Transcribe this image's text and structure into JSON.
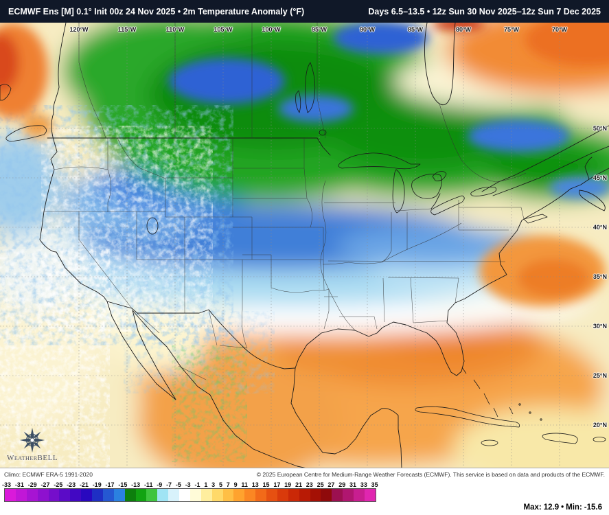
{
  "header": {
    "title_model": "ECMWF Ens [M] 0.1°",
    "title_rest": "Init 00z 24 Nov 2025 • 2m Temperature Anomaly (°F)",
    "valid_range": "Days 6.5–13.5 • 12z Sun 30 Nov 2025–12z Sun 7 Dec 2025"
  },
  "map": {
    "lon_labels": [
      "120°W",
      "115°W",
      "110°W",
      "105°W",
      "100°W",
      "95°W",
      "90°W",
      "85°W",
      "80°W",
      "75°W",
      "70°W"
    ],
    "lat_labels": [
      "50°N",
      "45°N",
      "40°N",
      "35°N",
      "30°N",
      "25°N",
      "20°N"
    ],
    "logo_text": "WeatherBELL"
  },
  "footer": {
    "climo": "Climo: ECMWF ERA-5 1991-2020",
    "copyright": "© 2025 European Centre for Medium-Range Weather Forecasts (ECMWF). This service is based on data and products of the ECMWF.",
    "max_label": "Max:",
    "max_value": "12.9",
    "separator": "•",
    "min_label": "Min:",
    "min_value": "-15.6"
  },
  "chart_data": {
    "type": "heatmap",
    "title": "ECMWF Ens [M] 0.1° 2m Temperature Anomaly (°F)",
    "init": "00z 24 Nov 2025",
    "valid": "Days 6.5–13.5 • 12z Sun 30 Nov 2025–12z Sun 7 Dec 2025",
    "units": "°F",
    "climatology": "ECMWF ERA-5 1991-2020",
    "max": 12.9,
    "min": -15.6,
    "colorbar": {
      "tick_labels": [
        -33,
        -31,
        -29,
        -27,
        -25,
        -23,
        -21,
        -19,
        -17,
        -15,
        -13,
        -11,
        -9,
        -7,
        -5,
        -3,
        -1,
        1,
        3,
        5,
        7,
        9,
        11,
        13,
        15,
        17,
        19,
        21,
        23,
        25,
        27,
        29,
        31,
        33,
        35
      ],
      "colors": [
        "#da1ada",
        "#c117d7",
        "#a714d3",
        "#8e11cf",
        "#750ecb",
        "#5b0bc7",
        "#4208c3",
        "#2908bf",
        "#1f2fc4",
        "#2558d2",
        "#2b81e0",
        "#0d7f0d",
        "#12a312",
        "#3fc43f",
        "#a0e4f4",
        "#d8f2fb",
        "#ffffff",
        "#fffbd8",
        "#ffee9e",
        "#ffd969",
        "#ffbf45",
        "#ffa32e",
        "#fb8723",
        "#f26a19",
        "#e65011",
        "#d93a0b",
        "#ca2807",
        "#b81a05",
        "#a41005",
        "#8f0a0b",
        "#9c1050",
        "#b01670",
        "#c81e90",
        "#e026b0"
      ]
    },
    "pattern_summary": [
      {
        "region": "Canada / northern Plains / Upper Midwest / Great Lakes / Quebec",
        "anomaly_F": "-5 to -13 (green with blue pockets near -15)"
      },
      {
        "region": "Central US band (Nebraska–Ohio Valley)",
        "anomaly_F": "-1 to -5 (light blue/cyan)"
      },
      {
        "region": "Southern US, Gulf Coast, Southeast, Mexico",
        "anomaly_F": "+3 to +9 (orange)"
      },
      {
        "region": "Northwest Atlantic (top right)",
        "anomaly_F": "+9 to +13 (deep orange, near max 12.9)"
      },
      {
        "region": "Western US / Rockies",
        "anomaly_F": "noisy -1 to -5 speckle"
      }
    ]
  }
}
